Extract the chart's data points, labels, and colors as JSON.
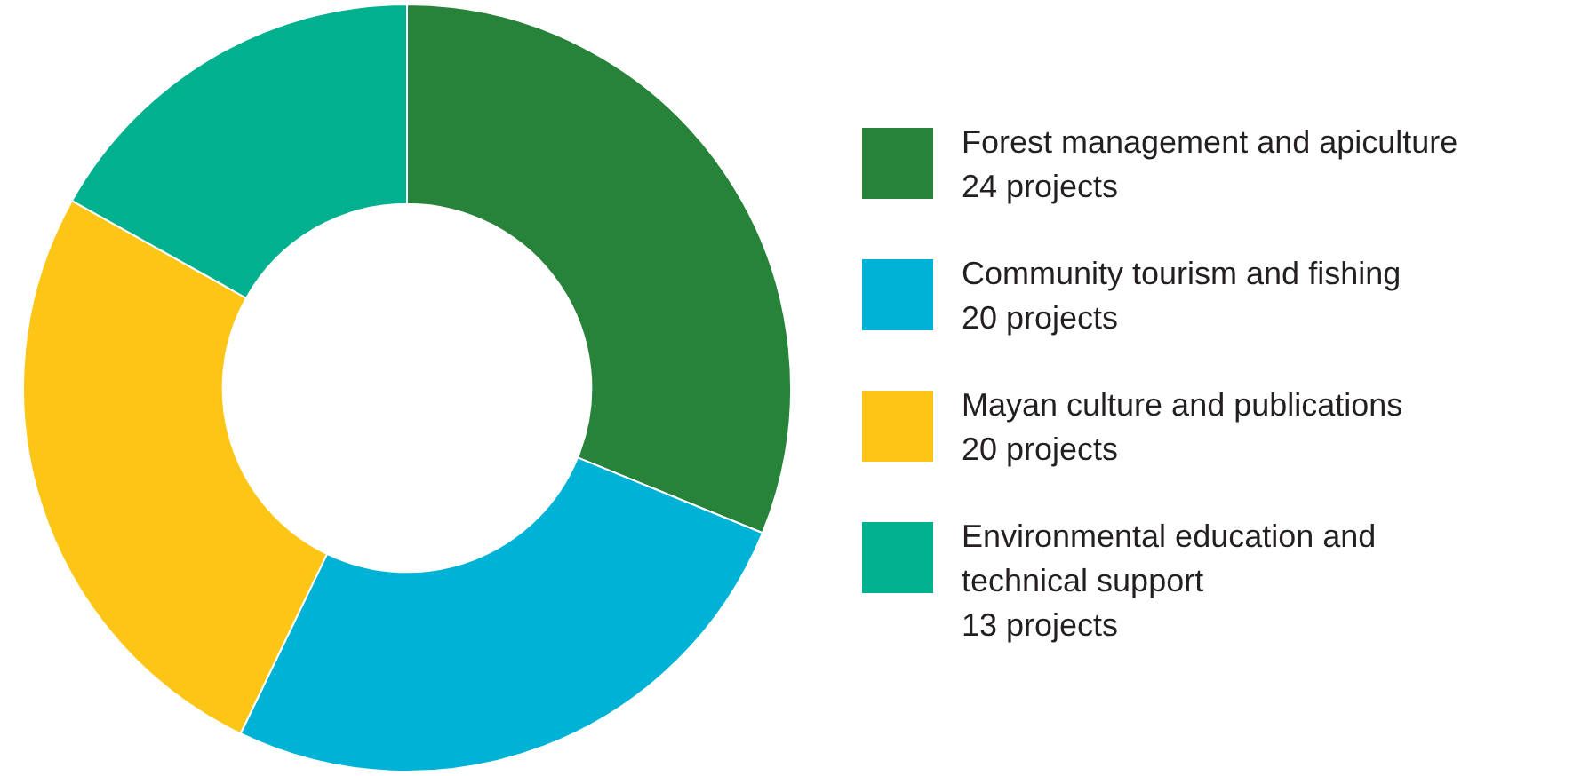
{
  "chart_data": {
    "type": "donut",
    "categories": [
      "Forest management and apiculture",
      "Community tourism and fishing",
      "Mayan culture and publications",
      "Environmental education and\ntechnical support"
    ],
    "values": [
      24,
      20,
      20,
      13
    ],
    "colors": [
      "#27823a",
      "#00b2d6",
      "#fdc515",
      "#00b08f"
    ],
    "value_labels": [
      "24 projects",
      "20 projects",
      "20 projects",
      "13 projects"
    ],
    "legend": "right"
  }
}
